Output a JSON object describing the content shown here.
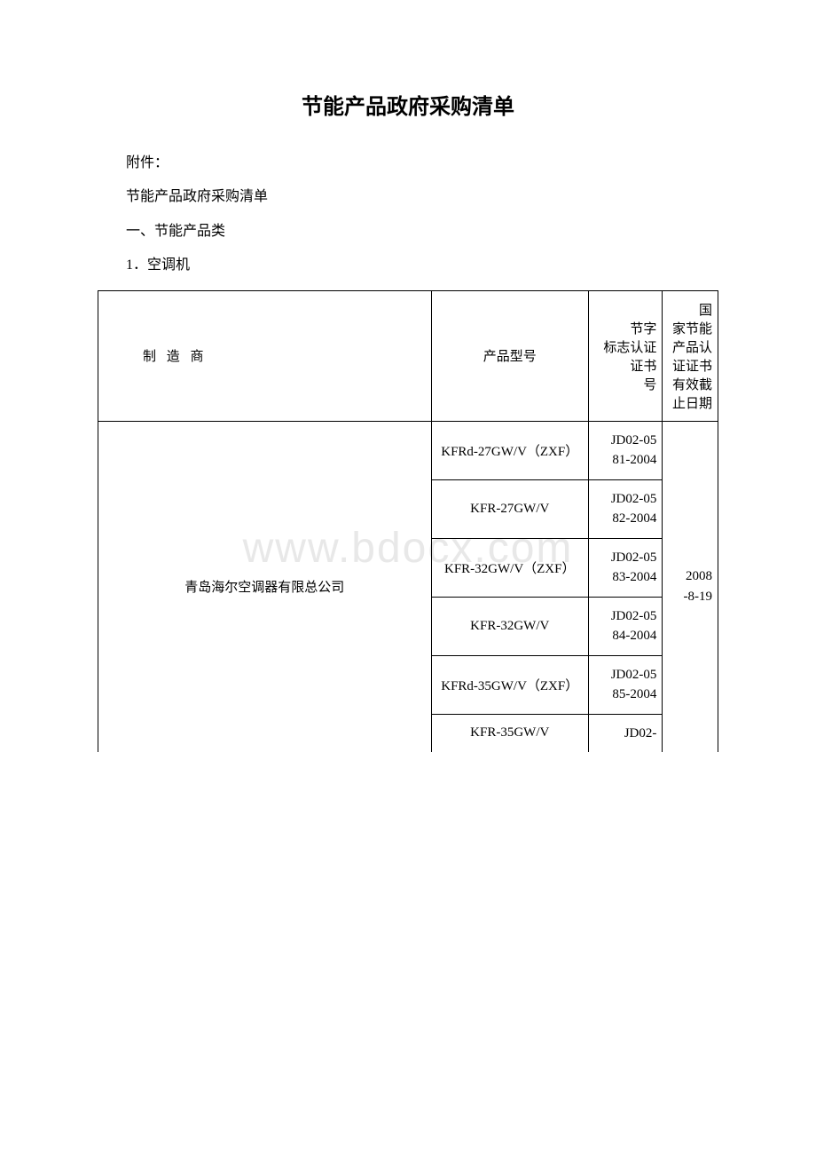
{
  "title": "节能产品政府采购清单",
  "lines": {
    "attachment": "附件：",
    "subtitle": "节能产品政府采购清单",
    "section": "一、节能产品类",
    "item": "1．空调机"
  },
  "watermark": "www.bdocx.com",
  "table": {
    "columns": {
      "manufacturer": "制 造 商",
      "model": "产品型号",
      "cert": "　　节字标志认证\n　　证书号",
      "date": "　　国家节能产品认证证书有效截止日期"
    },
    "manufacturer": "青岛海尔空调器有限总公司",
    "expiry": "　2008-8-19",
    "rows": [
      {
        "model": "KFRd-27GW/V（ZXF）",
        "cert": "　JD02-0581-2004"
      },
      {
        "model": "KFR-27GW/V",
        "cert": "　JD02-0582-2004"
      },
      {
        "model": "KFR-32GW/V（ZXF）",
        "cert": "　JD02-0583-2004"
      },
      {
        "model": "KFR-32GW/V",
        "cert": "　JD02-0584-2004"
      },
      {
        "model": "KFRd-35GW/V（ZXF）",
        "cert": "　JD02-0585-2004"
      },
      {
        "model": "KFR-35GW/V",
        "cert": "　JD02-"
      }
    ]
  },
  "style": {
    "background": "#ffffff",
    "text_color": "#000000",
    "border_color": "#000000",
    "watermark_color": "#e8e8e8",
    "title_fontsize": 24,
    "body_fontsize": 16,
    "table_fontsize": 15,
    "watermark_fontsize": 48
  }
}
